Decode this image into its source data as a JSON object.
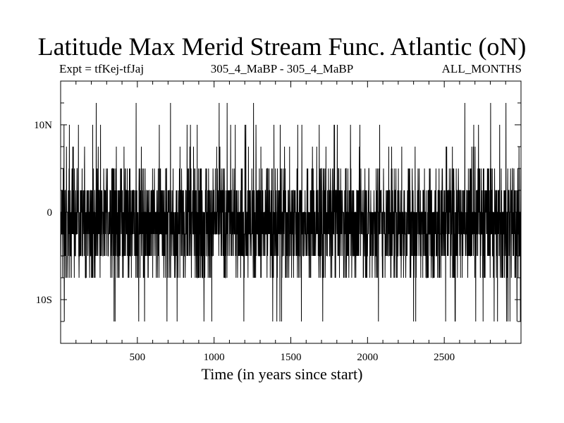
{
  "chart_data": {
    "type": "line",
    "title": "Latitude Max Merid Stream Func. Atlantic (oN)",
    "subtitle_left": "Expt = tfKej-tfJaj",
    "subtitle_center": "305_4_MaBP - 305_4_MaBP",
    "subtitle_right": "ALL_MONTHS",
    "xlabel": "Time (in years since start)",
    "ylabel": "",
    "xlim": [
      0,
      3000
    ],
    "ylim": [
      -15,
      15
    ],
    "x_ticks": [
      500,
      1000,
      1500,
      2000,
      2500
    ],
    "y_ticks": [
      {
        "value": 10,
        "label": "10N"
      },
      {
        "value": 0,
        "label": "0"
      },
      {
        "value": -10,
        "label": "10S"
      }
    ],
    "grid": false,
    "series": [
      {
        "line_color": "#000000",
        "sampling": "annual, years 1-3000",
        "discrete_levels": [
          -12.5,
          -10,
          -7.5,
          -5,
          -2.5,
          0,
          2.5,
          5,
          7.5,
          10,
          12.5
        ],
        "typical_range": [
          -7.5,
          7.5
        ],
        "mean_approx": -1,
        "max_approx": 12.5,
        "min_approx": -12.5
      }
    ]
  }
}
